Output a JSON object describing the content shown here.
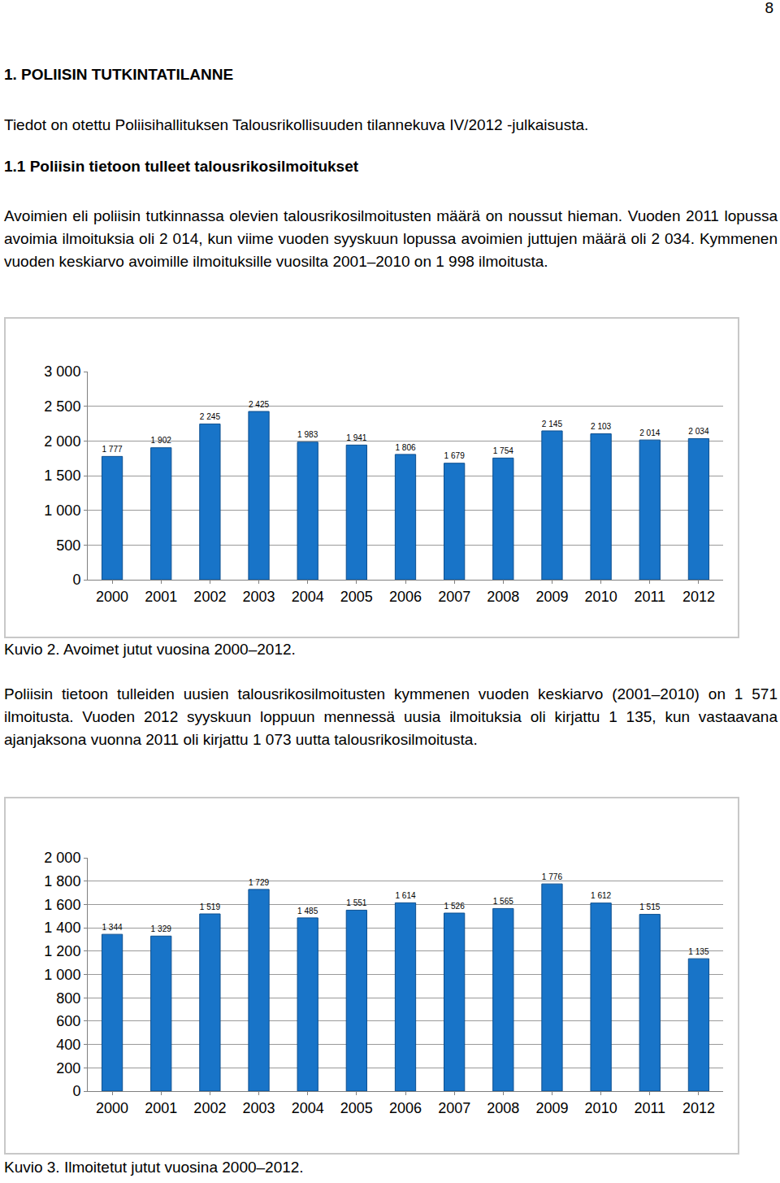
{
  "document": {
    "page_number": "8",
    "heading": "1. POLIISIN TUTKINTATILANNE",
    "source": "Tiedot on otettu Poliisihallituksen Talousrikollisuuden tilannekuva IV/2012 -julkaisusta.",
    "subheading": "1.1 Poliisin tietoon tulleet talousrikosilmoitukset",
    "paragraphs": [
      "Avoimien eli poliisin tutkinnassa olevien talousrikosilmoitusten määrä on noussut hieman. Vuoden 2011 lopussa avoimia ilmoituksia oli 2 014, kun viime vuoden syyskuun lopussa avoimien juttujen määrä oli 2 034. Kymmenen vuoden keskiarvo avoimille ilmoituksille vuosilta 2001–2010 on 1 998 ilmoitusta.",
      "Poliisin tietoon tulleiden uusien talousrikosilmoitusten kymmenen vuoden keskiarvo (2001–2010) on 1 571 ilmoitusta. Vuoden 2012 syyskuun loppuun mennessä uusia ilmoituksia oli kirjattu 1 135, kun vastaavana ajanjaksona vuonna 2011 oli kirjattu 1 073 uutta talousrikosilmoitusta."
    ]
  },
  "chart_data": [
    {
      "type": "bar",
      "title": "Kuvio 2. Avoimet jutut vuosina 2000–2012.",
      "categories": [
        "2000",
        "2001",
        "2002",
        "2003",
        "2004",
        "2005",
        "2006",
        "2007",
        "2008",
        "2009",
        "2010",
        "2011",
        "2012"
      ],
      "values": [
        1777,
        1902,
        2245,
        2425,
        1983,
        1941,
        1806,
        1679,
        1754,
        2145,
        2103,
        2014,
        2034
      ],
      "value_labels": [
        "1 777",
        "1 902",
        "2 245",
        "2 425",
        "1 983",
        "1 941",
        "1 806",
        "1 679",
        "1 754",
        "2 145",
        "2 103",
        "2 014",
        "2 034"
      ],
      "color": "#1874c8",
      "ylim": [
        0,
        3000
      ],
      "yticks": [
        0,
        500,
        {
          "value": 1000,
          "label": "1 000"
        },
        {
          "value": 1500,
          "label": "1 500"
        },
        {
          "value": 2000,
          "label": "2 000"
        },
        {
          "value": 2500,
          "label": "2 500"
        },
        {
          "value": 3000,
          "label": "3 000"
        }
      ],
      "grid": true,
      "data_labels": true
    },
    {
      "type": "bar",
      "title": "Kuvio 3. Ilmoitetut jutut vuosina 2000–2012.",
      "categories": [
        "2000",
        "2001",
        "2002",
        "2003",
        "2004",
        "2005",
        "2006",
        "2007",
        "2008",
        "2009",
        "2010",
        "2011",
        "2012"
      ],
      "values": [
        1344,
        1329,
        1519,
        1729,
        1485,
        1551,
        1614,
        1526,
        1565,
        1776,
        1612,
        1515,
        1135
      ],
      "value_labels": [
        "1 344",
        "1 329",
        "1 519",
        "1 729",
        "1 485",
        "1 551",
        "1 614",
        "1 526",
        "1 565",
        "1 776",
        "1 612",
        "1 515",
        "1 135"
      ],
      "color": "#1874c8",
      "ylim": [
        0,
        2000
      ],
      "yticks": [
        0,
        200,
        400,
        600,
        800,
        {
          "value": 1000,
          "label": "1 000"
        },
        {
          "value": 1200,
          "label": "1 200"
        },
        {
          "value": 1400,
          "label": "1 400"
        },
        {
          "value": 1600,
          "label": "1 600"
        },
        {
          "value": 1800,
          "label": "1 800"
        },
        {
          "value": 2000,
          "label": "2 000"
        }
      ],
      "grid": true,
      "data_labels": true
    }
  ]
}
